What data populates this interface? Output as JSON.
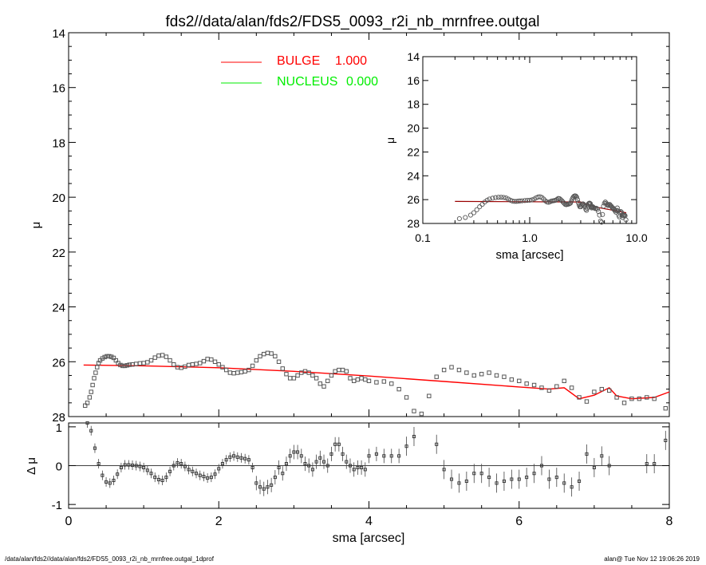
{
  "title": "fds2//data/alan/fds2/FDS5_0093_r2i_nb_mrnfree.outgal",
  "footer_left": "/data/alan/fds2//data/alan/fds2/FDS5_0093_r2i_nb_mrnfree.outgal_1dprof",
  "footer_right": "alan@  Tue Nov 12 19:06:26 2019",
  "colors": {
    "bulge": "#ff0000",
    "nucleus": "#00ee00",
    "data": "#555555",
    "model_total": "#000000"
  },
  "chart_data": [
    {
      "type": "scatter",
      "id": "main-profile",
      "xlabel": "sma [arcsec]",
      "ylabel": "μ",
      "xlim": [
        0,
        8
      ],
      "ylim": [
        28,
        14
      ],
      "xticks": [
        0,
        2,
        4,
        6,
        8
      ],
      "yticks": [
        14,
        16,
        18,
        20,
        22,
        24,
        26,
        28
      ],
      "legend": [
        {
          "label": "BULGE",
          "value": "1.000",
          "color": "#ff0000"
        },
        {
          "label": "NUCLEUS",
          "value": "0.000",
          "color": "#00ee00"
        }
      ],
      "points": [
        [
          0.22,
          27.6
        ],
        [
          0.25,
          27.5
        ],
        [
          0.28,
          27.3
        ],
        [
          0.3,
          27.1
        ],
        [
          0.32,
          26.85
        ],
        [
          0.34,
          26.6
        ],
        [
          0.36,
          26.4
        ],
        [
          0.38,
          26.2
        ],
        [
          0.4,
          26.05
        ],
        [
          0.42,
          25.95
        ],
        [
          0.45,
          25.88
        ],
        [
          0.48,
          25.83
        ],
        [
          0.51,
          25.8
        ],
        [
          0.54,
          25.8
        ],
        [
          0.57,
          25.82
        ],
        [
          0.6,
          25.86
        ],
        [
          0.63,
          25.95
        ],
        [
          0.66,
          26.05
        ],
        [
          0.69,
          26.12
        ],
        [
          0.72,
          26.15
        ],
        [
          0.75,
          26.15
        ],
        [
          0.78,
          26.13
        ],
        [
          0.81,
          26.11
        ],
        [
          0.85,
          26.1
        ],
        [
          0.9,
          26.08
        ],
        [
          0.95,
          26.06
        ],
        [
          1.0,
          26.05
        ],
        [
          1.05,
          26.02
        ],
        [
          1.1,
          25.95
        ],
        [
          1.15,
          25.85
        ],
        [
          1.2,
          25.78
        ],
        [
          1.25,
          25.76
        ],
        [
          1.3,
          25.82
        ],
        [
          1.35,
          25.95
        ],
        [
          1.4,
          26.1
        ],
        [
          1.45,
          26.2
        ],
        [
          1.5,
          26.22
        ],
        [
          1.55,
          26.18
        ],
        [
          1.6,
          26.12
        ],
        [
          1.65,
          26.1
        ],
        [
          1.7,
          26.08
        ],
        [
          1.75,
          26.05
        ],
        [
          1.8,
          25.98
        ],
        [
          1.85,
          25.9
        ],
        [
          1.9,
          25.92
        ],
        [
          1.95,
          26.0
        ],
        [
          2.0,
          26.1
        ],
        [
          2.05,
          26.2
        ],
        [
          2.1,
          26.3
        ],
        [
          2.15,
          26.4
        ],
        [
          2.2,
          26.42
        ],
        [
          2.25,
          26.4
        ],
        [
          2.3,
          26.38
        ],
        [
          2.35,
          26.35
        ],
        [
          2.4,
          26.3
        ],
        [
          2.45,
          26.15
        ],
        [
          2.5,
          25.95
        ],
        [
          2.55,
          25.8
        ],
        [
          2.6,
          25.72
        ],
        [
          2.65,
          25.68
        ],
        [
          2.7,
          25.7
        ],
        [
          2.75,
          25.8
        ],
        [
          2.8,
          26.0
        ],
        [
          2.85,
          26.25
        ],
        [
          2.9,
          26.45
        ],
        [
          2.95,
          26.6
        ],
        [
          3.0,
          26.6
        ],
        [
          3.05,
          26.5
        ],
        [
          3.1,
          26.4
        ],
        [
          3.15,
          26.35
        ],
        [
          3.2,
          26.4
        ],
        [
          3.25,
          26.5
        ],
        [
          3.3,
          26.6
        ],
        [
          3.35,
          26.8
        ],
        [
          3.4,
          26.9
        ],
        [
          3.45,
          26.7
        ],
        [
          3.5,
          26.5
        ],
        [
          3.55,
          26.35
        ],
        [
          3.6,
          26.3
        ],
        [
          3.65,
          26.3
        ],
        [
          3.7,
          26.35
        ],
        [
          3.75,
          26.6
        ],
        [
          3.8,
          26.7
        ],
        [
          3.85,
          26.65
        ],
        [
          3.9,
          26.6
        ],
        [
          3.95,
          26.65
        ],
        [
          4.0,
          26.7
        ],
        [
          4.1,
          26.75
        ],
        [
          4.2,
          26.72
        ],
        [
          4.3,
          26.8
        ],
        [
          4.4,
          27.0
        ],
        [
          4.5,
          27.3
        ],
        [
          4.6,
          27.8
        ],
        [
          4.7,
          27.9
        ],
        [
          4.8,
          27.25
        ],
        [
          4.9,
          26.55
        ],
        [
          5.0,
          26.3
        ],
        [
          5.1,
          26.2
        ],
        [
          5.2,
          26.3
        ],
        [
          5.3,
          26.4
        ],
        [
          5.4,
          26.5
        ],
        [
          5.5,
          26.45
        ],
        [
          5.6,
          26.4
        ],
        [
          5.7,
          26.5
        ],
        [
          5.8,
          26.55
        ],
        [
          5.9,
          26.65
        ],
        [
          6.0,
          26.7
        ],
        [
          6.1,
          26.8
        ],
        [
          6.2,
          26.85
        ],
        [
          6.3,
          26.95
        ],
        [
          6.4,
          27.05
        ],
        [
          6.5,
          26.9
        ],
        [
          6.6,
          26.7
        ],
        [
          6.7,
          26.95
        ],
        [
          6.8,
          27.3
        ],
        [
          6.9,
          27.45
        ],
        [
          7.0,
          27.1
        ],
        [
          7.1,
          27.0
        ],
        [
          7.2,
          27.05
        ],
        [
          7.3,
          27.3
        ],
        [
          7.4,
          27.5
        ],
        [
          7.5,
          27.35
        ],
        [
          7.6,
          27.35
        ],
        [
          7.7,
          27.3
        ],
        [
          7.8,
          27.35
        ],
        [
          7.95,
          27.7
        ]
      ],
      "series": [
        {
          "name": "BULGE",
          "color": "#ff0000",
          "points": [
            [
              0.2,
              26.12
            ],
            [
              1,
              26.15
            ],
            [
              2,
              26.22
            ],
            [
              3,
              26.35
            ],
            [
              4,
              26.52
            ],
            [
              5,
              26.72
            ],
            [
              6,
              26.92
            ],
            [
              6.4,
              27.0
            ],
            [
              6.6,
              26.95
            ],
            [
              6.8,
              27.35
            ],
            [
              7.0,
              27.22
            ],
            [
              7.2,
              26.95
            ],
            [
              7.3,
              27.25
            ],
            [
              7.5,
              27.35
            ],
            [
              7.8,
              27.3
            ],
            [
              8.0,
              27.1
            ]
          ]
        }
      ]
    },
    {
      "type": "scatter",
      "id": "inset-profile",
      "xlabel": "sma [arcsec]",
      "ylabel": "μ",
      "xscale": "log",
      "xlim": [
        0.1,
        10
      ],
      "ylim": [
        28,
        14
      ],
      "xticks": [
        0.1,
        1.0,
        10.0
      ],
      "xtick_labels": [
        "0.1",
        "1.0",
        "10.0"
      ],
      "yticks": [
        14,
        16,
        18,
        20,
        22,
        24,
        26,
        28
      ],
      "bulge_points": [
        [
          0.2,
          26.15
        ],
        [
          3,
          26.2
        ],
        [
          4,
          26.6
        ],
        [
          8,
          27.1
        ]
      ]
    },
    {
      "type": "scatter",
      "id": "residuals",
      "ylabel": "Δ μ",
      "xlim": [
        0,
        8
      ],
      "ylim": [
        -1.1,
        1.1
      ],
      "yticks": [
        -1,
        0,
        1
      ],
      "points": [
        [
          0.25,
          1.3
        ],
        [
          0.3,
          0.9
        ],
        [
          0.35,
          0.45
        ],
        [
          0.4,
          0.05
        ],
        [
          0.45,
          -0.25
        ],
        [
          0.5,
          -0.42
        ],
        [
          0.55,
          -0.45
        ],
        [
          0.6,
          -0.38
        ],
        [
          0.65,
          -0.22
        ],
        [
          0.7,
          -0.05
        ],
        [
          0.75,
          0.02
        ],
        [
          0.8,
          0.02
        ],
        [
          0.85,
          0.01
        ],
        [
          0.9,
          0.0
        ],
        [
          0.95,
          -0.02
        ],
        [
          1.0,
          -0.05
        ],
        [
          1.05,
          -0.12
        ],
        [
          1.1,
          -0.2
        ],
        [
          1.15,
          -0.3
        ],
        [
          1.2,
          -0.36
        ],
        [
          1.25,
          -0.38
        ],
        [
          1.3,
          -0.3
        ],
        [
          1.35,
          -0.15
        ],
        [
          1.4,
          0.0
        ],
        [
          1.45,
          0.07
        ],
        [
          1.5,
          0.05
        ],
        [
          1.55,
          -0.02
        ],
        [
          1.6,
          -0.1
        ],
        [
          1.65,
          -0.15
        ],
        [
          1.7,
          -0.2
        ],
        [
          1.75,
          -0.25
        ],
        [
          1.8,
          -0.28
        ],
        [
          1.85,
          -0.32
        ],
        [
          1.9,
          -0.3
        ],
        [
          1.95,
          -0.22
        ],
        [
          2.0,
          -0.08
        ],
        [
          2.05,
          0.05
        ],
        [
          2.1,
          0.15
        ],
        [
          2.15,
          0.22
        ],
        [
          2.2,
          0.25
        ],
        [
          2.25,
          0.22
        ],
        [
          2.3,
          0.2
        ],
        [
          2.35,
          0.18
        ],
        [
          2.4,
          0.15
        ],
        [
          2.45,
          -0.05
        ],
        [
          2.5,
          -0.45
        ],
        [
          2.55,
          -0.55
        ],
        [
          2.6,
          -0.6
        ],
        [
          2.65,
          -0.55
        ],
        [
          2.7,
          -0.5
        ],
        [
          2.75,
          -0.3
        ],
        [
          2.8,
          -0.05
        ],
        [
          2.85,
          -0.2
        ],
        [
          2.9,
          0.05
        ],
        [
          2.95,
          0.25
        ],
        [
          3.0,
          0.35
        ],
        [
          3.05,
          0.35
        ],
        [
          3.1,
          0.25
        ],
        [
          3.15,
          0.05
        ],
        [
          3.2,
          0.0
        ],
        [
          3.25,
          -0.1
        ],
        [
          3.3,
          0.1
        ],
        [
          3.35,
          0.2
        ],
        [
          3.4,
          0.1
        ],
        [
          3.45,
          0.0
        ],
        [
          3.5,
          0.3
        ],
        [
          3.55,
          0.55
        ],
        [
          3.6,
          0.55
        ],
        [
          3.65,
          0.3
        ],
        [
          3.7,
          0.1
        ],
        [
          3.75,
          0.0
        ],
        [
          3.8,
          -0.1
        ],
        [
          3.85,
          -0.05
        ],
        [
          3.9,
          -0.05
        ],
        [
          3.95,
          -0.1
        ],
        [
          4.0,
          0.25
        ],
        [
          4.1,
          0.3
        ],
        [
          4.2,
          0.25
        ],
        [
          4.3,
          0.25
        ],
        [
          4.4,
          0.25
        ],
        [
          4.5,
          0.5
        ],
        [
          4.6,
          0.75
        ],
        [
          4.9,
          0.55
        ],
        [
          5.0,
          -0.1
        ],
        [
          5.1,
          -0.35
        ],
        [
          5.2,
          -0.45
        ],
        [
          5.3,
          -0.4
        ],
        [
          5.4,
          -0.2
        ],
        [
          5.5,
          -0.2
        ],
        [
          5.6,
          -0.3
        ],
        [
          5.7,
          -0.45
        ],
        [
          5.8,
          -0.4
        ],
        [
          5.9,
          -0.35
        ],
        [
          6.0,
          -0.35
        ],
        [
          6.1,
          -0.3
        ],
        [
          6.2,
          -0.2
        ],
        [
          6.3,
          0.0
        ],
        [
          6.4,
          -0.35
        ],
        [
          6.5,
          -0.3
        ],
        [
          6.6,
          -0.45
        ],
        [
          6.7,
          -0.55
        ],
        [
          6.8,
          -0.4
        ],
        [
          6.9,
          0.3
        ],
        [
          7.0,
          -0.05
        ],
        [
          7.1,
          0.25
        ],
        [
          7.2,
          0.0
        ],
        [
          7.7,
          0.05
        ],
        [
          7.8,
          0.05
        ],
        [
          7.95,
          0.65
        ]
      ]
    }
  ]
}
